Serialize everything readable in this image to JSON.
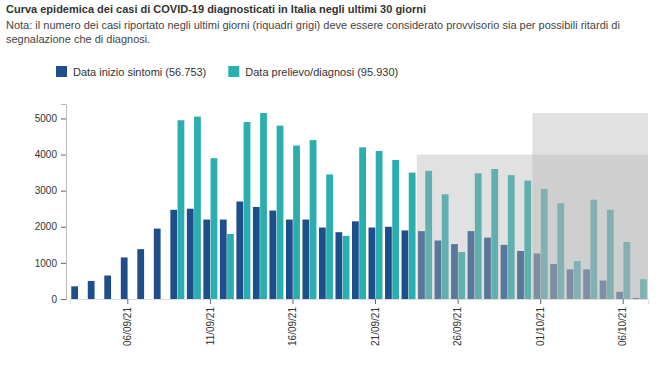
{
  "chart_data": {
    "type": "bar",
    "title": "Curva epidemica dei casi di COVID-19 diagnosticati in Italia negli ultimi 30 giorni",
    "subtitle": "Nota: il numero dei casi riportato negli ultimi giorni (riquadri grigi) deve essere considerato provvisorio sia per possibili ritardi di segnalazione che di diagnosi.",
    "categories": [
      null,
      null,
      null,
      "06/09/21",
      null,
      null,
      null,
      null,
      "11/09/21",
      null,
      null,
      null,
      null,
      "16/09/21",
      null,
      null,
      null,
      null,
      "21/09/21",
      null,
      null,
      null,
      null,
      "26/09/21",
      null,
      null,
      null,
      null,
      "01/10/21",
      null,
      null,
      null,
      null,
      "06/10/21",
      null
    ],
    "series": [
      {
        "name": "Data inizio sintomi (56.753)",
        "color": "#1f4f8b",
        "values": [
          350,
          500,
          650,
          1150,
          1380,
          1950,
          2470,
          2500,
          2200,
          2200,
          2700,
          2550,
          2450,
          2200,
          2200,
          1980,
          1850,
          2150,
          1980,
          2000,
          1900,
          1880,
          1620,
          1520,
          1880,
          1700,
          1500,
          1330,
          1260,
          970,
          820,
          820,
          510,
          200,
          30
        ]
      },
      {
        "name": "Data prelievo/diagnosi (95.930)",
        "color": "#2aaeae",
        "values": [
          0,
          0,
          0,
          0,
          0,
          0,
          4950,
          5050,
          3900,
          1800,
          4900,
          5150,
          4800,
          4250,
          4400,
          3450,
          1750,
          4200,
          4100,
          3850,
          3500,
          3550,
          2900,
          1300,
          3480,
          3600,
          3430,
          3280,
          3050,
          2650,
          1050,
          2750,
          2470,
          1580,
          550
        ]
      }
    ],
    "shaded_regions": [
      {
        "from_index": 21,
        "to_index": 34,
        "top": 4000
      },
      {
        "from_index": 28,
        "to_index": 34,
        "top": 5150
      }
    ],
    "ylim": [
      0,
      5400
    ],
    "yticks": [
      0,
      1000,
      2000,
      3000,
      4000,
      5000
    ],
    "grid": false,
    "legend": "top"
  }
}
